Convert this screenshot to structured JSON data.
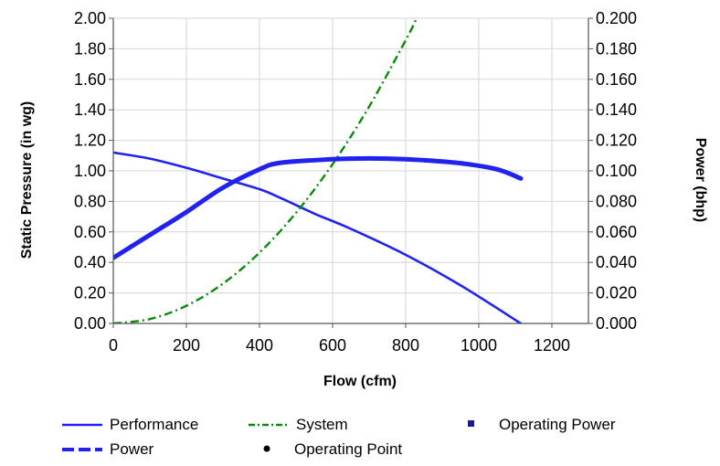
{
  "chart_data": {
    "type": "line",
    "title": "",
    "xlabel": "Flow (cfm)",
    "ylabel": "Static Pressure (in wg)",
    "y2label": "Power (bhp)",
    "xlim": [
      0,
      1300
    ],
    "ylim": [
      0,
      2.0
    ],
    "y2lim": [
      0,
      0.2
    ],
    "x_ticks": [
      "0",
      "200",
      "400",
      "600",
      "800",
      "1000",
      "1200"
    ],
    "x_tick_values": [
      0,
      200,
      400,
      600,
      800,
      1000,
      1200
    ],
    "y_ticks": [
      "0.00",
      "0.20",
      "0.40",
      "0.60",
      "0.80",
      "1.00",
      "1.20",
      "1.40",
      "1.60",
      "1.80",
      "2.00"
    ],
    "y_tick_values": [
      0,
      0.2,
      0.4,
      0.6,
      0.8,
      1.0,
      1.2,
      1.4,
      1.6,
      1.8,
      2.0
    ],
    "y2_ticks": [
      "0.000",
      "0.020",
      "0.040",
      "0.060",
      "0.080",
      "0.100",
      "0.120",
      "0.140",
      "0.160",
      "0.180",
      "0.200"
    ],
    "y2_tick_values": [
      0,
      0.02,
      0.04,
      0.06,
      0.08,
      0.1,
      0.12,
      0.14,
      0.16,
      0.18,
      0.2
    ],
    "grid": true,
    "legend_position": "bottom",
    "series": [
      {
        "name": "Performance",
        "axis": "left",
        "color": "#2222ee",
        "style": "solid",
        "x": [
          0,
          100,
          200,
          300,
          400,
          460,
          550,
          650,
          800,
          950,
          1115
        ],
        "y": [
          1.12,
          1.08,
          1.02,
          0.95,
          0.88,
          0.82,
          0.72,
          0.62,
          0.45,
          0.25,
          0.0
        ]
      },
      {
        "name": "System",
        "axis": "left",
        "color": "#0a8a0a",
        "style": "dashdot",
        "x": [
          0,
          100,
          200,
          300,
          400,
          500,
          600,
          700,
          800,
          830
        ],
        "y": [
          0.0,
          0.029,
          0.116,
          0.261,
          0.464,
          0.725,
          1.044,
          1.421,
          1.856,
          2.0
        ]
      },
      {
        "name": "Power",
        "axis": "right",
        "color": "#2222ee",
        "style": "dashed",
        "x": [
          0,
          100,
          200,
          300,
          400,
          450,
          550,
          650,
          750,
          850,
          950,
          1050,
          1115
        ],
        "y": [
          0.043,
          0.058,
          0.073,
          0.089,
          0.101,
          0.105,
          0.107,
          0.108,
          0.108,
          0.107,
          0.105,
          0.101,
          0.095
        ]
      }
    ],
    "legend": [
      {
        "label": "Performance",
        "marker": "solid-line"
      },
      {
        "label": "System",
        "marker": "dashdot-line"
      },
      {
        "label": "Operating Power",
        "marker": "square"
      },
      {
        "label": "Power",
        "marker": "dashed-line"
      },
      {
        "label": "Operating Point",
        "marker": "dot"
      }
    ]
  }
}
